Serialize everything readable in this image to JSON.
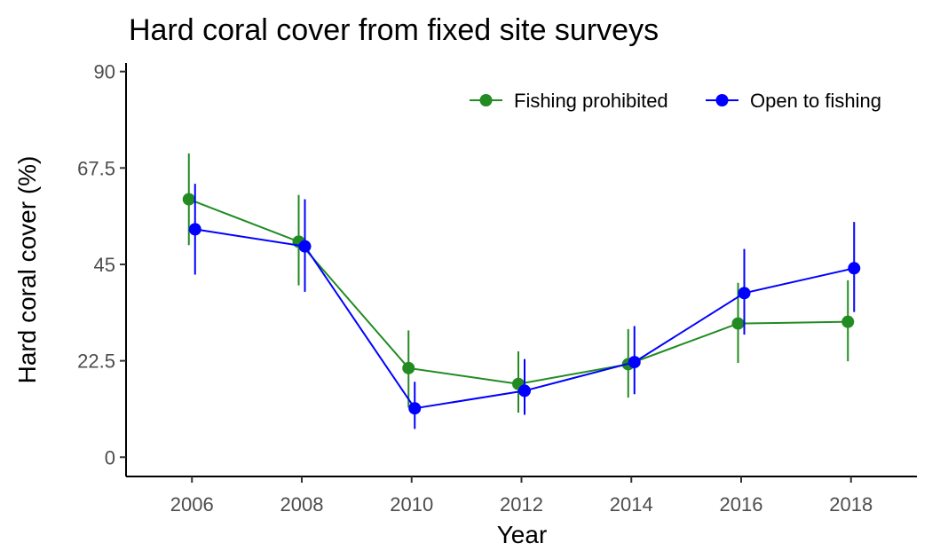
{
  "chart_data": {
    "type": "line",
    "title": "Hard coral cover from fixed site surveys",
    "xlabel": "Year",
    "ylabel": "Hard coral cover (%)",
    "x": [
      2006,
      2008,
      2010,
      2012,
      2014,
      2016,
      2018
    ],
    "x_ticks": [
      "2006",
      "2008",
      "2010",
      "2012",
      "2014",
      "2016",
      "2018"
    ],
    "xlim": [
      2004.8,
      2019.2
    ],
    "y_ticks": [
      "0",
      "22.5",
      "45",
      "67.5",
      "90"
    ],
    "ylim": [
      -4.5,
      92
    ],
    "grid": false,
    "legend_position": "top-right",
    "series": [
      {
        "name": "Fishing prohibited",
        "color": "#228b22",
        "values": [
          60.2,
          50.3,
          20.8,
          17.1,
          21.7,
          31.2,
          31.6
        ],
        "lower": [
          49.5,
          40.1,
          11.6,
          10.4,
          13.9,
          22.0,
          22.4
        ],
        "upper": [
          70.9,
          61.2,
          29.6,
          24.7,
          29.9,
          40.7,
          41.3
        ]
      },
      {
        "name": "Open to fishing",
        "color": "#0000ff",
        "values": [
          53.2,
          49.2,
          11.4,
          15.5,
          22.2,
          38.3,
          44.1
        ],
        "lower": [
          42.6,
          38.6,
          6.6,
          9.9,
          14.7,
          28.6,
          33.9
        ],
        "upper": [
          63.8,
          60.2,
          17.6,
          22.9,
          30.6,
          48.6,
          54.9
        ]
      }
    ]
  }
}
